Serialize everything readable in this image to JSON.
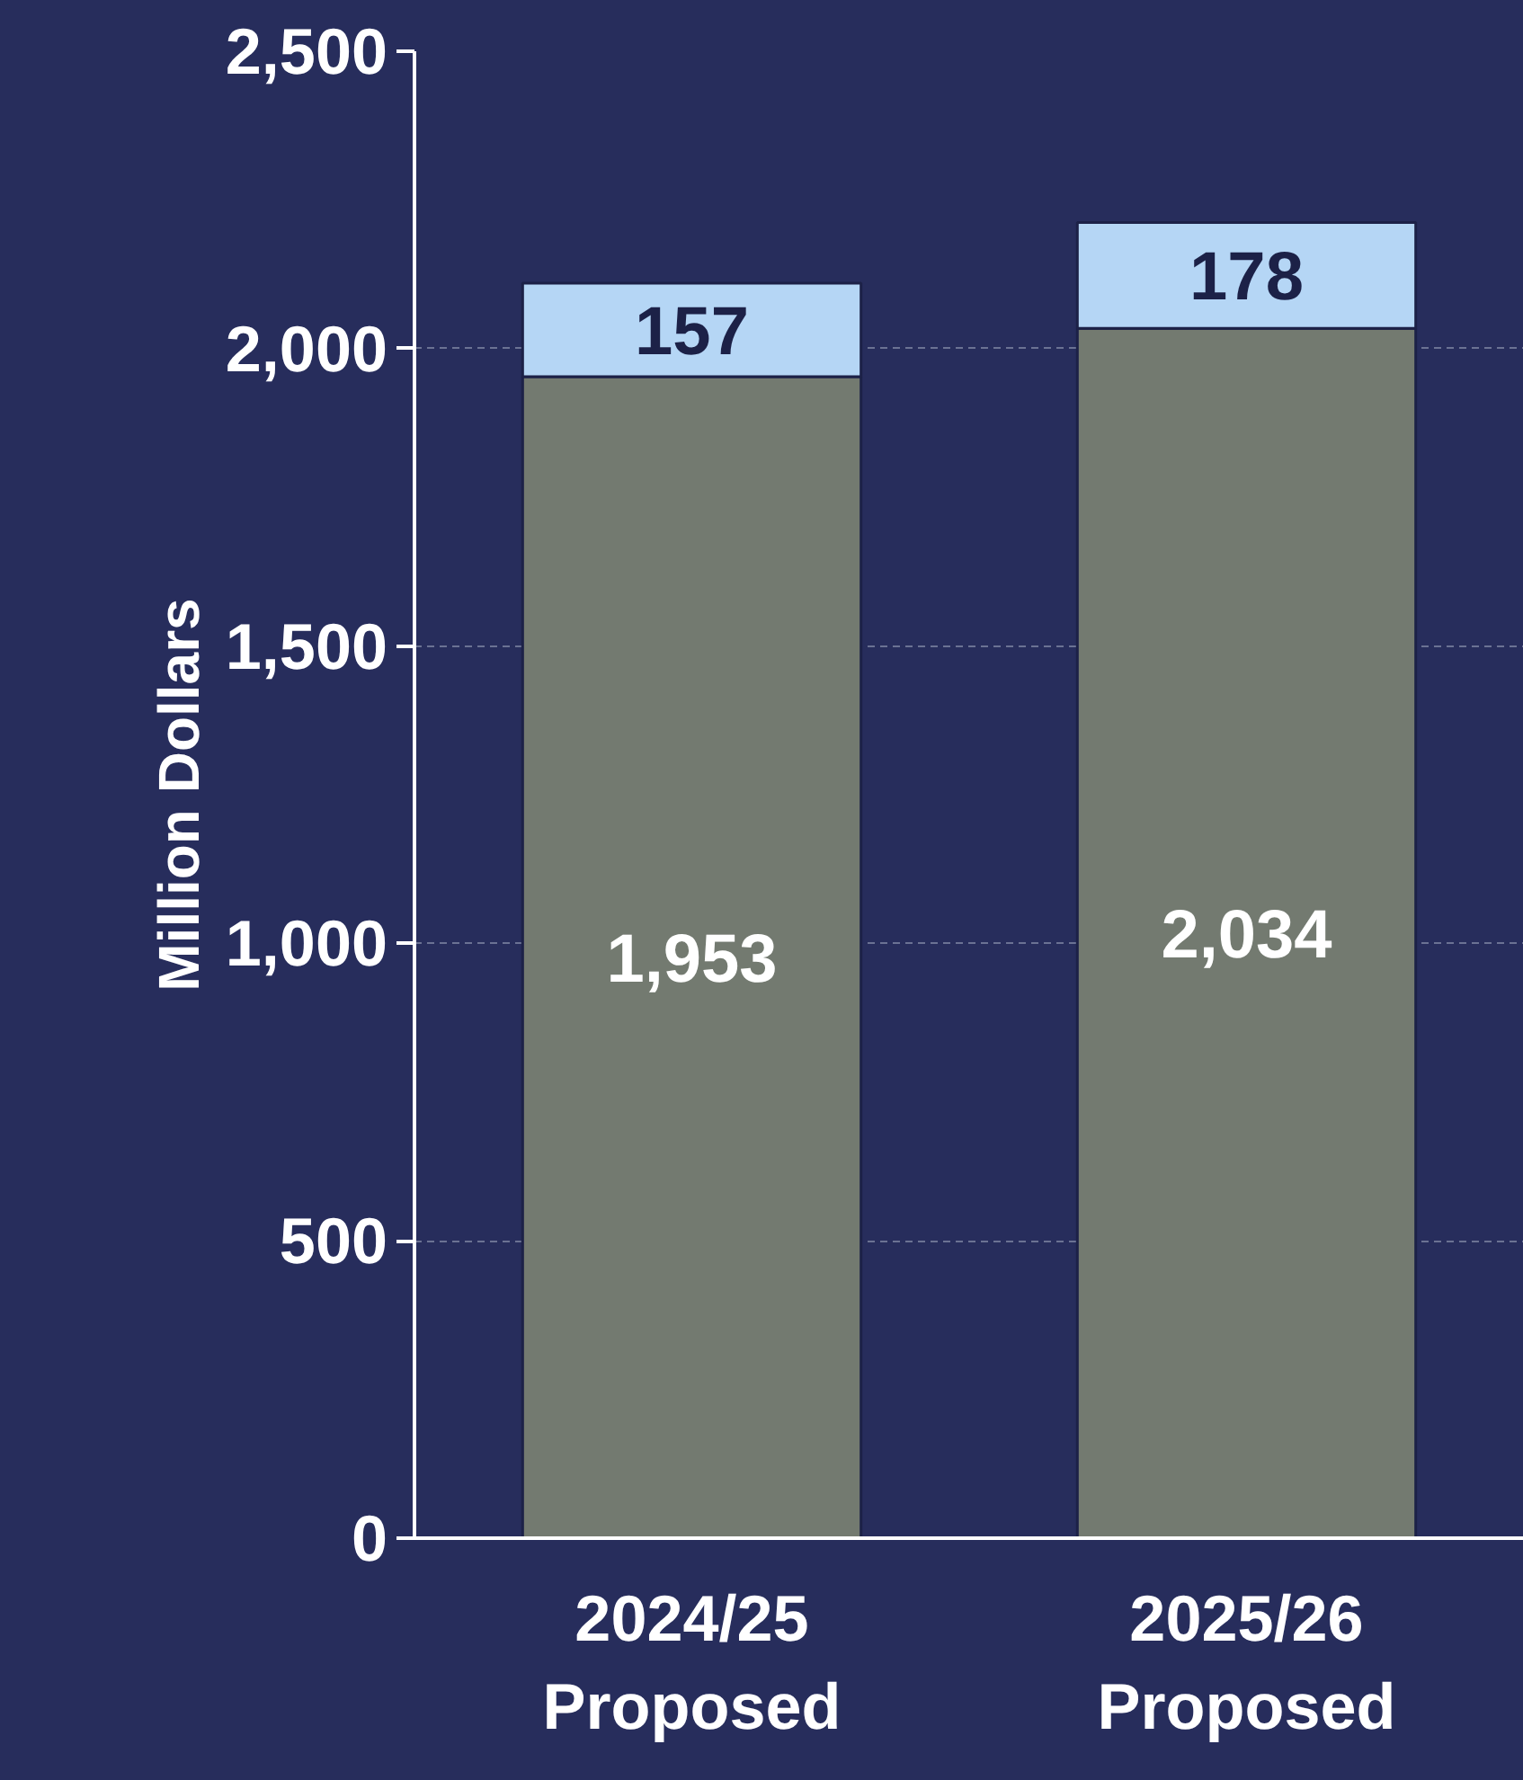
{
  "chart_data": {
    "type": "bar",
    "stacked": true,
    "ylabel": "Million Dollars",
    "categories": [
      "2024/25\nProposed",
      "2025/26\nProposed"
    ],
    "series": [
      {
        "color": "#737a70",
        "values": [
          1953,
          2034
        ],
        "value_labels": [
          "1,953",
          "2,034"
        ]
      },
      {
        "color": "#b5d6f5",
        "values": [
          157,
          178
        ],
        "value_labels": [
          "157",
          "178"
        ]
      }
    ],
    "ylim": [
      0,
      2500
    ],
    "yticks": [
      0,
      {
        "value": 500,
        "label": "500"
      },
      {
        "value": 1000,
        "label": "1,000"
      },
      {
        "value": 1500,
        "label": "1,500"
      },
      {
        "value": 2000,
        "label": "2,000"
      },
      {
        "value": 2500,
        "label": "2,500"
      }
    ],
    "grid": "y"
  }
}
